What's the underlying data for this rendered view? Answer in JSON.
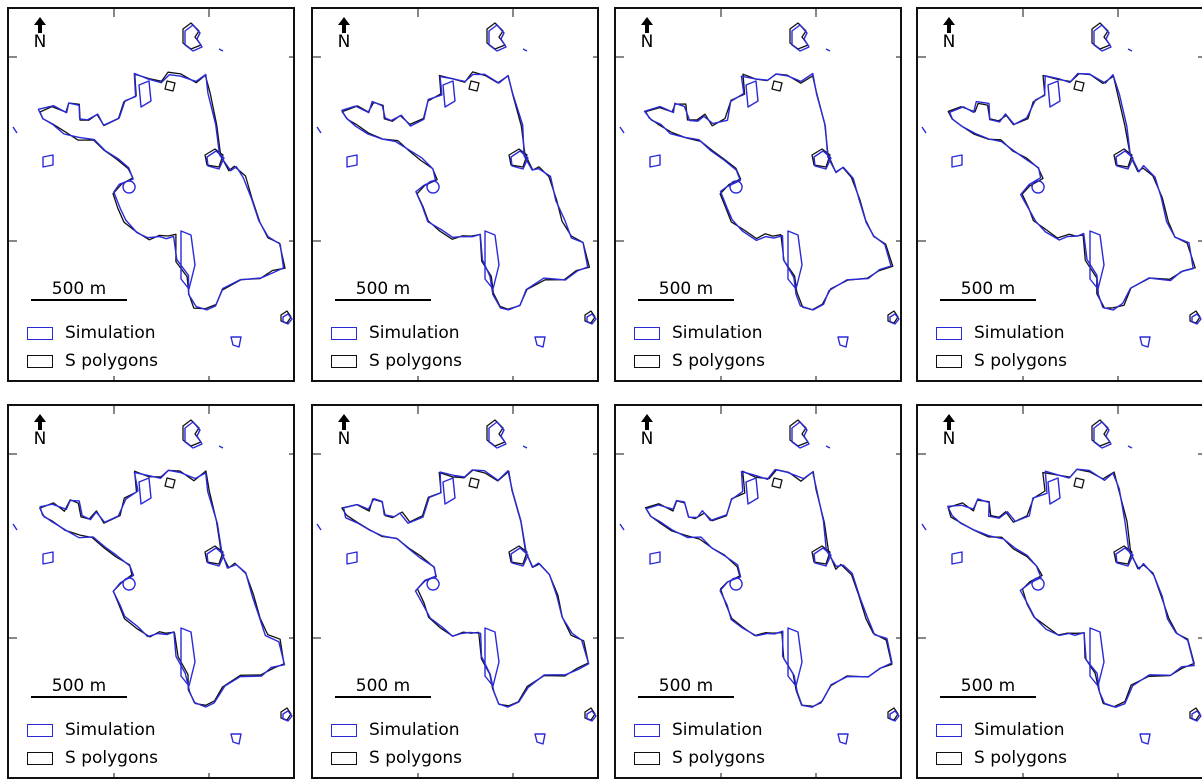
{
  "colors": {
    "simulation": "#2a2adb",
    "s_polygons": "#111111"
  },
  "panels": [
    {
      "north": "N",
      "scale": "500 m",
      "legend": [
        "Simulation",
        "S polygons"
      ]
    },
    {
      "north": "N",
      "scale": "500 m",
      "legend": [
        "Simulation",
        "S polygons"
      ]
    },
    {
      "north": "N",
      "scale": "500 m",
      "legend": [
        "Simulation",
        "S polygons"
      ]
    },
    {
      "north": "N",
      "scale": "500 m",
      "legend": [
        "Simulation",
        "S polygons"
      ]
    },
    {
      "north": "N",
      "scale": "500 m",
      "legend": [
        "Simulation",
        "S polygons"
      ]
    },
    {
      "north": "N",
      "scale": "500 m",
      "legend": [
        "Simulation",
        "S polygons"
      ]
    },
    {
      "north": "N",
      "scale": "500 m",
      "legend": [
        "Simulation",
        "S polygons"
      ]
    },
    {
      "north": "N",
      "scale": "500 m",
      "legend": [
        "Simulation",
        "S polygons"
      ]
    }
  ]
}
